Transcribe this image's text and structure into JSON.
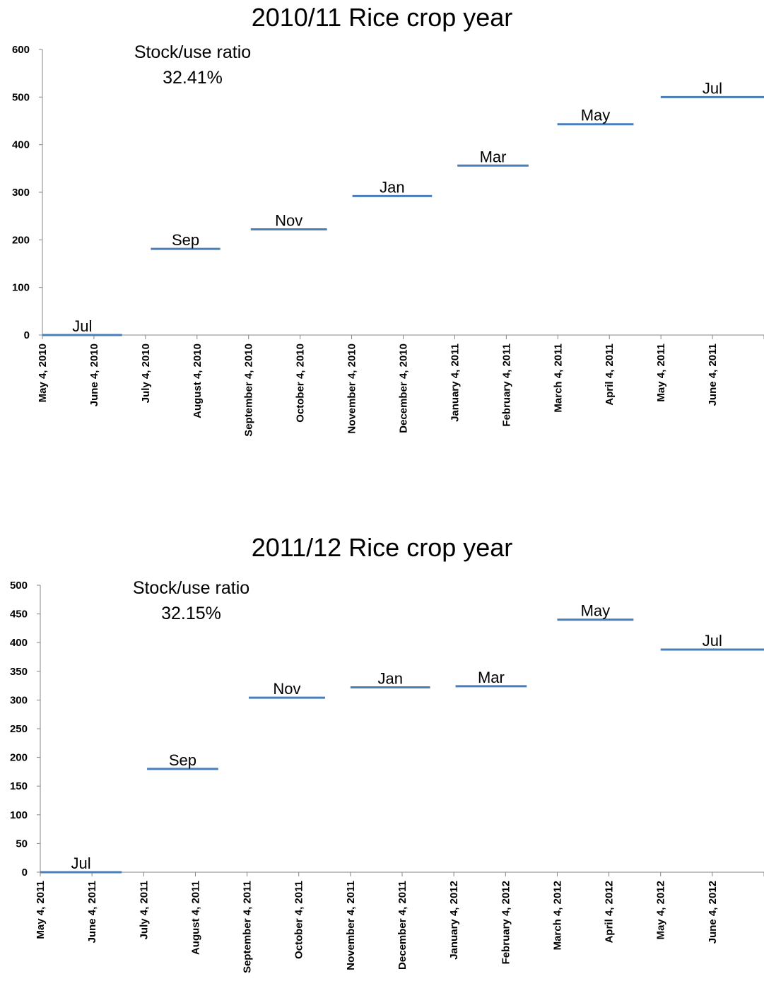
{
  "chart_data": [
    {
      "type": "line",
      "title": "2010/11 Rice crop year",
      "annotation": {
        "line1": "Stock/use ratio",
        "line2": "32.41%"
      },
      "ylim": [
        0,
        600
      ],
      "yticks": [
        0,
        100,
        200,
        300,
        400,
        500,
        600
      ],
      "xticks": [
        "May 4, 2010",
        "June 4, 2010",
        "July 4, 2010",
        "August 4, 2010",
        "September 4, 2010",
        "October 4, 2010",
        "November 4, 2010",
        "December 4, 2010",
        "January 4, 2011",
        "February 4, 2011",
        "March 4, 2011",
        "April 4, 2011",
        "May 4, 2011",
        "June 4, 2011"
      ],
      "xlim": [
        "2010-05-04",
        "2011-07-04"
      ],
      "color": "#4a7ebb",
      "segments": [
        {
          "label": "Jul",
          "start": "2010-05-04",
          "end": "2010-06-20",
          "value": 0
        },
        {
          "label": "Sep",
          "start": "2010-07-07",
          "end": "2010-08-17",
          "value": 181
        },
        {
          "label": "Nov",
          "start": "2010-09-04",
          "end": "2010-10-19",
          "value": 222
        },
        {
          "label": "Jan",
          "start": "2010-11-03",
          "end": "2010-12-20",
          "value": 292
        },
        {
          "label": "Mar",
          "start": "2011-01-04",
          "end": "2011-02-15",
          "value": 356
        },
        {
          "label": "May",
          "start": "2011-03-04",
          "end": "2011-04-18",
          "value": 443
        },
        {
          "label": "Jul",
          "start": "2011-05-04",
          "end": "2011-07-04",
          "value": 500
        }
      ]
    },
    {
      "type": "line",
      "title": "2011/12 Rice crop year",
      "annotation": {
        "line1": "Stock/use ratio",
        "line2": "32.15%"
      },
      "ylim": [
        0,
        500
      ],
      "yticks": [
        0,
        50,
        100,
        150,
        200,
        250,
        300,
        350,
        400,
        450,
        500
      ],
      "xticks": [
        "May 4, 2011",
        "June 4, 2011",
        "July 4, 2011",
        "August 4, 2011",
        "September 4, 2011",
        "October 4, 2011",
        "November 4, 2011",
        "December 4, 2011",
        "January 4, 2012",
        "February 4, 2012",
        "March 4, 2012",
        "April 4, 2012",
        "May 4, 2012",
        "June 4, 2012"
      ],
      "xlim": [
        "2011-05-04",
        "2012-07-04"
      ],
      "color": "#4a7ebb",
      "segments": [
        {
          "label": "Jul",
          "start": "2011-05-04",
          "end": "2011-06-21",
          "value": 0
        },
        {
          "label": "Sep",
          "start": "2011-07-06",
          "end": "2011-08-17",
          "value": 180
        },
        {
          "label": "Nov",
          "start": "2011-09-04",
          "end": "2011-10-19",
          "value": 304
        },
        {
          "label": "Jan",
          "start": "2011-11-03",
          "end": "2011-12-20",
          "value": 322
        },
        {
          "label": "Mar",
          "start": "2012-01-04",
          "end": "2012-02-15",
          "value": 324
        },
        {
          "label": "May",
          "start": "2012-03-04",
          "end": "2012-04-18",
          "value": 440
        },
        {
          "label": "Jul",
          "start": "2012-05-04",
          "end": "2012-07-04",
          "value": 388
        }
      ]
    }
  ]
}
